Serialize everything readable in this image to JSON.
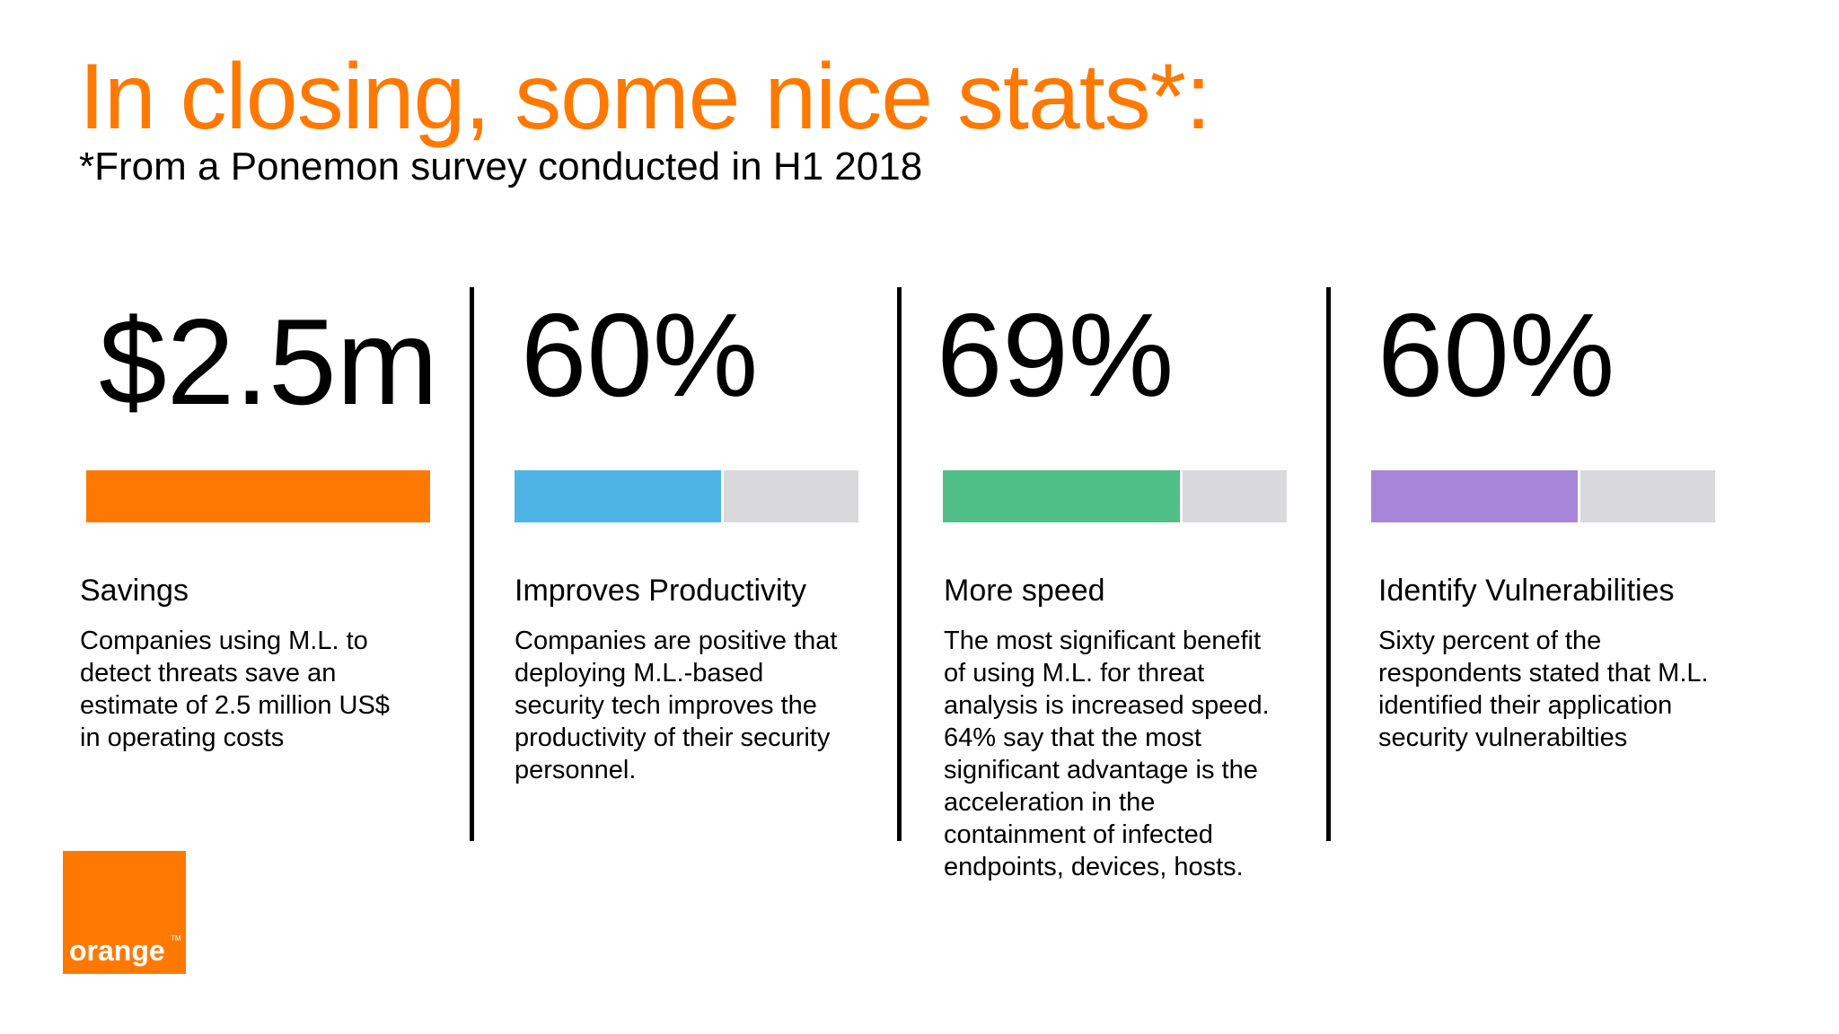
{
  "slide": {
    "title": "In closing, some nice stats*:",
    "subtitle": "*From a Ponemon survey conducted in H1 2018"
  },
  "colors": {
    "brand": "#ff7900",
    "track": "#d9d8da"
  },
  "stats": [
    {
      "value": "$2.5m",
      "bar_fill_percent": 100,
      "bar_color": "#ff7900",
      "heading": "Savings",
      "description": "Companies using M.L. to\ndetect threats save an\nestimate of 2.5 million US$\nin operating costs"
    },
    {
      "value": "60%",
      "bar_fill_percent": 60,
      "bar_color": "#4db5e6",
      "heading": "Improves Productivity",
      "description": "Companies are positive that\ndeploying M.L.-based\nsecurity tech improves the\nproductivity of their security\npersonnel."
    },
    {
      "value": "69%",
      "bar_fill_percent": 69,
      "bar_color": "#50be87",
      "heading": "More speed",
      "description": "The most significant benefit\nof using M.L. for threat\nanalysis is increased speed.\n64% say that the most\nsignificant advantage is the\nacceleration in the\ncontainment of infected\nendpoints, devices, hosts."
    },
    {
      "value": "60%",
      "bar_fill_percent": 60,
      "bar_color": "#a885d8",
      "heading": "Identify Vulnerabilities",
      "description": "Sixty percent of the\nrespondents stated that M.L.\nidentified their application\nsecurity vulnerabilties"
    }
  ],
  "logo": {
    "text": "orange",
    "trademark": "TM"
  }
}
